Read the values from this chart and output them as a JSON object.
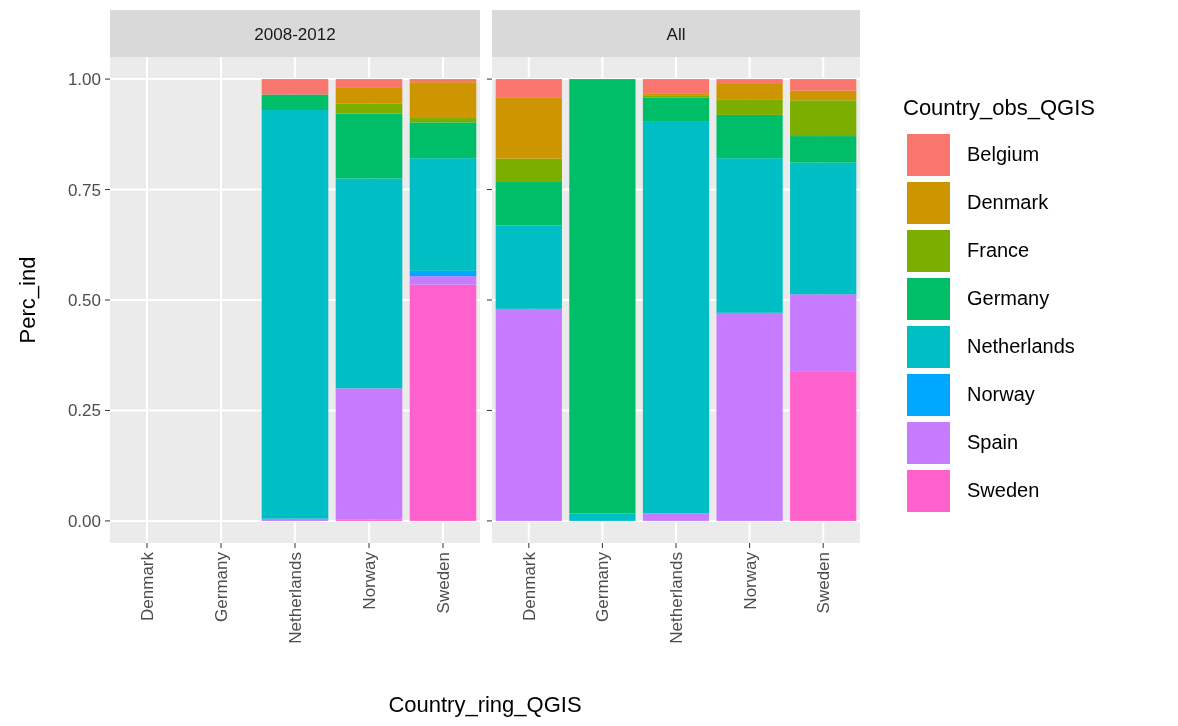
{
  "chart_data": [
    {
      "type": "bar",
      "title": "2008-2012",
      "xlabel": "Country_ring_QGIS",
      "ylabel": "Perc_ind",
      "stacked": true,
      "grid": true,
      "legend": false,
      "categories": [
        "Denmark",
        "Germany",
        "Netherlands",
        "Norway",
        "Sweden"
      ],
      "ylim": [
        -0.05,
        1.05
      ],
      "yticks": [
        {
          "value": 0,
          "label": "0.00"
        },
        {
          "value": 0.25,
          "label": "0.25"
        },
        {
          "value": 0.5,
          "label": "0.50"
        },
        {
          "value": 0.75,
          "label": "0.75"
        },
        {
          "value": 1,
          "label": "1.00"
        }
      ],
      "series": [
        {
          "color": "#ff61cc",
          "values": [
            null,
            null,
            null,
            0.003,
            0.535
          ]
        },
        {
          "color": "#c77cff",
          "values": [
            null,
            null,
            0.005,
            0.297,
            0.019
          ]
        },
        {
          "color": "#00a9ff",
          "values": [
            null,
            null,
            null,
            null,
            0.012
          ]
        },
        {
          "color": "#00bfc4",
          "values": [
            null,
            null,
            0.925,
            0.475,
            0.255
          ]
        },
        {
          "color": "#00be67",
          "values": [
            null,
            null,
            0.035,
            0.147,
            0.081
          ]
        },
        {
          "color": "#7cae00",
          "values": [
            null,
            null,
            null,
            0.023,
            0.01
          ]
        },
        {
          "color": "#cd9600",
          "values": [
            null,
            null,
            null,
            0.035,
            0.081
          ]
        },
        {
          "color": "#f8766d",
          "values": [
            null,
            null,
            0.035,
            0.02,
            0.007
          ]
        }
      ]
    },
    {
      "type": "bar",
      "title": "All",
      "stacked": true,
      "grid": true,
      "legend": "right",
      "legend_title": "Country_obs_QGIS",
      "tick_labels": "x",
      "categories": [
        "Denmark",
        "Germany",
        "Netherlands",
        "Norway",
        "Sweden"
      ],
      "ylim": [
        -0.05,
        1.05
      ],
      "yticks": [
        {
          "value": 0,
          "label": null
        },
        {
          "value": 0.25,
          "label": null
        },
        {
          "value": 0.5,
          "label": null
        },
        {
          "value": 0.75,
          "label": null
        },
        {
          "value": 1,
          "label": null
        }
      ],
      "series": [
        {
          "name": "Sweden",
          "color": "#ff61cc",
          "values": [
            null,
            null,
            null,
            null,
            0.339
          ]
        },
        {
          "name": "Spain",
          "color": "#c77cff",
          "values": [
            0.48,
            null,
            0.017,
            0.471,
            0.174
          ]
        },
        {
          "name": "Norway",
          "color": "#00a9ff",
          "values": [
            null,
            null,
            null,
            null,
            null
          ]
        },
        {
          "name": "Netherlands",
          "color": "#00bfc4",
          "values": [
            0.189,
            0.017,
            0.888,
            0.35,
            0.298
          ]
        },
        {
          "name": "Germany",
          "color": "#00be67",
          "values": [
            0.098,
            0.983,
            0.053,
            0.098,
            0.06
          ]
        },
        {
          "name": "France",
          "color": "#7cae00",
          "values": [
            0.053,
            null,
            0.004,
            0.034,
            0.081
          ]
        },
        {
          "name": "Denmark",
          "color": "#cd9600",
          "values": [
            0.139,
            null,
            0.006,
            0.036,
            0.022
          ]
        },
        {
          "name": "Belgium",
          "color": "#f8766d",
          "values": [
            0.041,
            null,
            0.032,
            0.011,
            0.026
          ]
        }
      ]
    }
  ]
}
